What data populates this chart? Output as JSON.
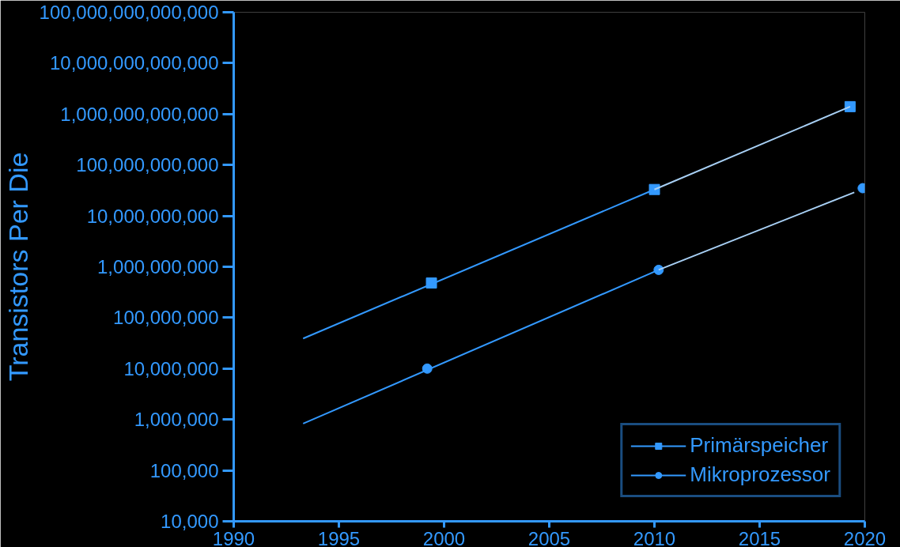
{
  "chart_data": {
    "type": "line",
    "ylabel": "Transistors Per Die",
    "log": "y",
    "grid": false,
    "legend": "bottom right",
    "xlim": [
      1990,
      2020
    ],
    "xticks": [
      1990,
      1995,
      2000,
      2005,
      2010,
      2015,
      2020
    ],
    "ylim": [
      10000,
      100000000000000
    ],
    "yticks": [
      {
        "value": 10000,
        "label": "10,000"
      },
      {
        "value": 100000,
        "label": "100,000"
      },
      {
        "value": 1000000,
        "label": "1,000,000"
      },
      {
        "value": 10000000,
        "label": "10,000,000"
      },
      {
        "value": 100000000,
        "label": "100,000,000"
      },
      {
        "value": 1000000000,
        "label": "1,000,000,000"
      },
      {
        "value": 10000000000,
        "label": "10,000,000,000"
      },
      {
        "value": 100000000000,
        "label": "100,000,000,000"
      },
      {
        "value": 1000000000000,
        "label": "1,000,000,000,000"
      },
      {
        "value": 10000000000000,
        "label": "10,000,000,000,000"
      },
      {
        "value": 100000000000000,
        "label": "100,000,000,000,000"
      }
    ],
    "series": [
      {
        "name": "Primärspeicher",
        "type": "scatter",
        "marker": "square",
        "color": "#3399ff",
        "x": [
          1999.4,
          2010.0,
          2019.3
        ],
        "values": [
          480000000,
          33000000000,
          1400000000000
        ]
      },
      {
        "name": "Mikroprozessor",
        "type": "scatter",
        "marker": "circle",
        "color": "#3399ff",
        "x": [
          1999.2,
          2010.2,
          2019.9
        ],
        "values": [
          10000000,
          870000000,
          35000000000
        ]
      },
      {
        "color": "#3399ff",
        "x": [
          1993.3,
          2010.0
        ],
        "values": [
          39000000,
          33000000000
        ]
      },
      {
        "color": "#a8d0f5",
        "x": [
          2010.0,
          2019.3
        ],
        "values": [
          33000000000,
          1400000000000
        ]
      },
      {
        "color": "#3399ff",
        "x": [
          1993.3,
          2010.2
        ],
        "values": [
          830000,
          870000000
        ]
      },
      {
        "color": "#a8d0f5",
        "x": [
          2010.2,
          2019.5
        ],
        "values": [
          870000000,
          29000000000
        ]
      }
    ]
  }
}
